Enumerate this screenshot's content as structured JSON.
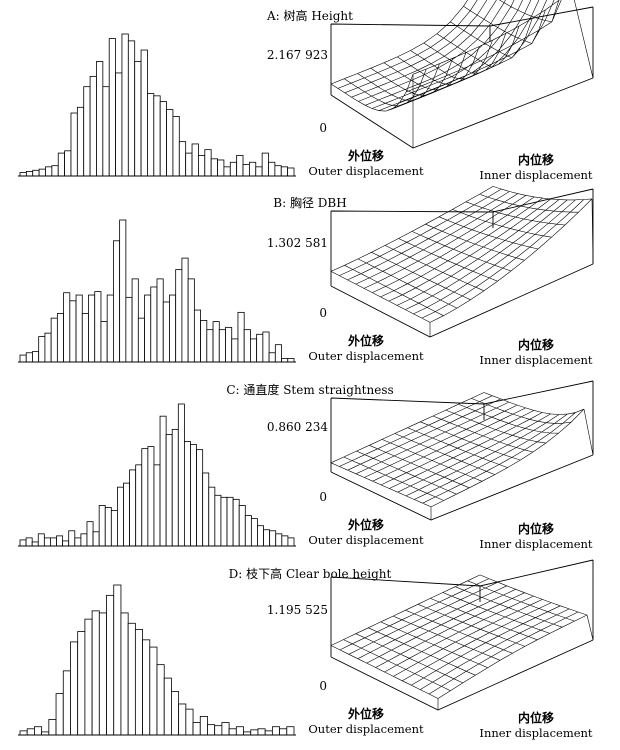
{
  "chart_data": [
    {
      "type": "histogram_and_surface",
      "title": "A: 树高 Height",
      "zmax_label": "2.167 923",
      "zmin_label": "0",
      "axis_left_cn": "外位移",
      "axis_left_en": "Outer displacement",
      "axis_right_cn": "内位移",
      "axis_right_en": "Inner displacement",
      "histogram": [
        3,
        4,
        5,
        6,
        8,
        9,
        20,
        22,
        55,
        60,
        78,
        87,
        100,
        78,
        120,
        90,
        124,
        118,
        100,
        110,
        72,
        70,
        65,
        58,
        52,
        30,
        20,
        28,
        18,
        23,
        15,
        14,
        8,
        12,
        18,
        10,
        12,
        8,
        20,
        12,
        9,
        8,
        7
      ]
    },
    {
      "type": "histogram_and_surface",
      "title": "B: 胸径 DBH",
      "zmax_label": "1.302 581",
      "zmin_label": "0",
      "axis_left_cn": "外位移",
      "axis_left_en": "Outer displacement",
      "axis_right_cn": "内位移",
      "axis_right_en": "Inner displacement",
      "histogram": [
        6,
        8,
        9,
        22,
        25,
        38,
        42,
        60,
        53,
        58,
        42,
        58,
        61,
        35,
        58,
        105,
        123,
        56,
        72,
        38,
        58,
        65,
        72,
        52,
        58,
        80,
        90,
        72,
        45,
        36,
        28,
        35,
        28,
        30,
        20,
        43,
        28,
        20,
        24,
        26,
        8,
        15,
        3,
        3
      ]
    },
    {
      "type": "histogram_and_surface",
      "title": "C: 通直度 Stem straightness",
      "zmax_label": "0.860 234",
      "zmin_label": "0",
      "axis_left_cn": "外位移",
      "axis_left_en": "Outer displacement",
      "axis_right_cn": "内位移",
      "axis_right_en": "Inner displacement",
      "histogram": [
        6,
        8,
        4,
        12,
        8,
        8,
        10,
        5,
        15,
        8,
        12,
        24,
        14,
        40,
        38,
        35,
        58,
        62,
        75,
        80,
        96,
        98,
        80,
        128,
        110,
        115,
        140,
        103,
        100,
        95,
        72,
        58,
        50,
        48,
        48,
        46,
        40,
        30,
        27,
        20,
        16,
        15,
        12,
        10,
        8
      ]
    },
    {
      "type": "histogram_and_surface",
      "title": "D: 枝下高 Clear bole height",
      "zmax_label": "1.195 525",
      "zmin_label": "0",
      "axis_left_cn": "外位移",
      "axis_left_en": "Outer displacement",
      "axis_right_cn": "内位移",
      "axis_right_en": "Inner displacement",
      "histogram": [
        4,
        6,
        8,
        3,
        15,
        40,
        62,
        90,
        100,
        112,
        120,
        118,
        135,
        145,
        118,
        108,
        102,
        92,
        85,
        68,
        55,
        42,
        30,
        25,
        12,
        18,
        10,
        9,
        12,
        6,
        8,
        3,
        5,
        6,
        4,
        8,
        6,
        8
      ]
    }
  ]
}
